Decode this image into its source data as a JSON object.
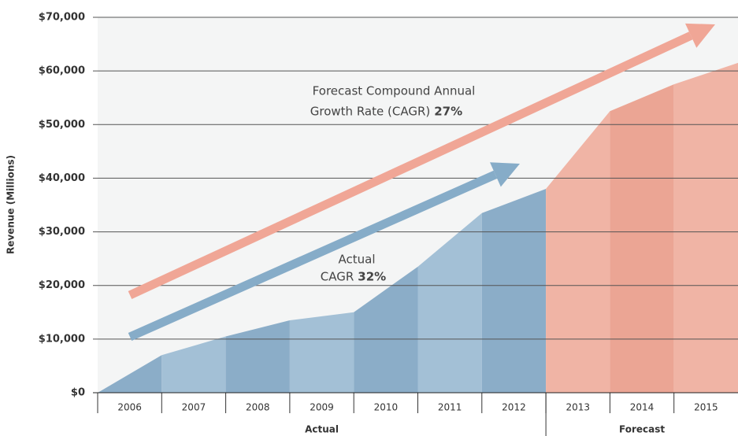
{
  "chart_data": {
    "type": "area",
    "ylabel": "Revenue (Millions)",
    "ylim": [
      0,
      70000
    ],
    "yticks": [
      {
        "value": 0,
        "label": "$0"
      },
      {
        "value": 10000,
        "label": "$10,000"
      },
      {
        "value": 20000,
        "label": "$20,000"
      },
      {
        "value": 30000,
        "label": "$30,000"
      },
      {
        "value": 40000,
        "label": "$40,000"
      },
      {
        "value": 50000,
        "label": "$50,000"
      },
      {
        "value": 60000,
        "label": "$60,000"
      },
      {
        "value": 70000,
        "label": "$70,000"
      }
    ],
    "grid": true,
    "series": [
      {
        "name": "Actual",
        "categories": [
          "2006",
          "2007",
          "2008",
          "2009",
          "2010",
          "2011",
          "2012"
        ],
        "values": [
          7000,
          10500,
          13500,
          15000,
          23500,
          33500,
          38000
        ],
        "colors": [
          "#8badc8",
          "#a3c0d6",
          "#8badc8",
          "#a3c0d6",
          "#8badc8",
          "#a3c0d6",
          "#8badc8"
        ]
      },
      {
        "name": "Forecast",
        "categories": [
          "2013",
          "2014",
          "2015"
        ],
        "values": [
          52500,
          57500,
          61500
        ],
        "colors": [
          "#f0b4a5",
          "#eba594",
          "#f0b4a5"
        ]
      }
    ],
    "annotations": [
      {
        "lines": [
          "Forecast Compound Annual",
          "Growth Rate (CAGR)"
        ],
        "bold": "27%",
        "color": "#f0a696"
      },
      {
        "lines": [
          "Actual",
          "CAGR"
        ],
        "bold": "32%",
        "color": "#86acc8"
      }
    ]
  }
}
